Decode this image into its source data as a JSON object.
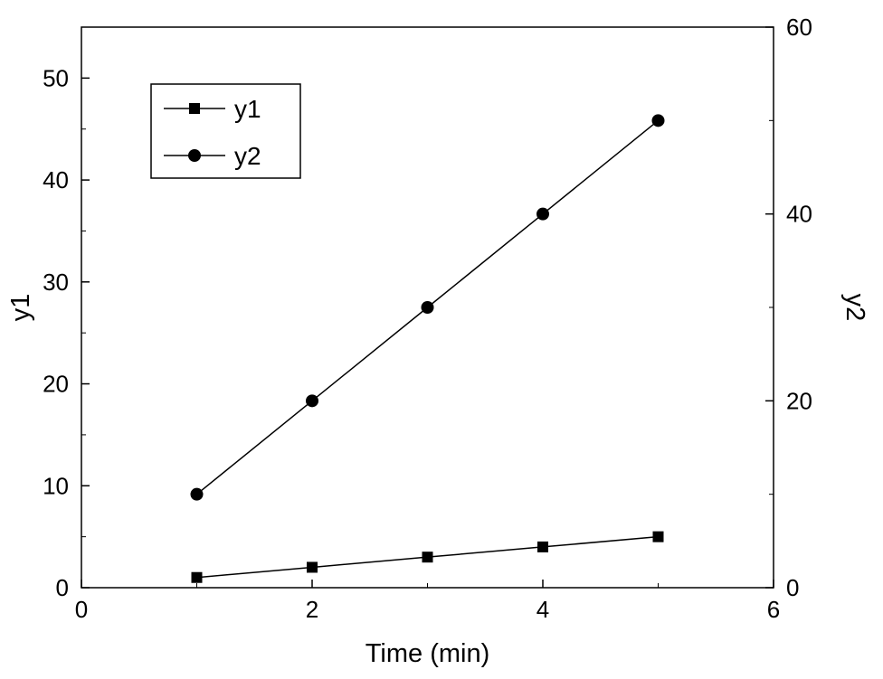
{
  "chart_data": {
    "type": "line",
    "title": "",
    "x": [
      1,
      2,
      3,
      4,
      5
    ],
    "series": [
      {
        "name": "y1",
        "axis": "left",
        "marker": "square",
        "values": [
          1,
          2,
          3,
          4,
          5
        ]
      },
      {
        "name": "y2",
        "axis": "right",
        "marker": "circle",
        "values": [
          10,
          20,
          30,
          40,
          50
        ]
      }
    ],
    "xlabel": "Time (min)",
    "ylabel_left": "y1",
    "ylabel_right": "y2",
    "xlim": [
      0,
      6
    ],
    "xticks": [
      0,
      2,
      4,
      6
    ],
    "xticks_minor": [
      1,
      3,
      5
    ],
    "ylim_left": [
      0,
      55
    ],
    "yticks_left": [
      0,
      10,
      20,
      30,
      40,
      50
    ],
    "yticks_left_minor": [
      5,
      15,
      25,
      35,
      45
    ],
    "ylim_right": [
      0,
      60
    ],
    "yticks_right": [
      0,
      20,
      40,
      60
    ],
    "yticks_right_minor": [
      10,
      30,
      50
    ],
    "legend": {
      "position": "top-left",
      "border": true,
      "entries": [
        "y1",
        "y2"
      ]
    },
    "grid": false,
    "colors": {
      "foreground": "#000000",
      "background": "#ffffff"
    }
  }
}
